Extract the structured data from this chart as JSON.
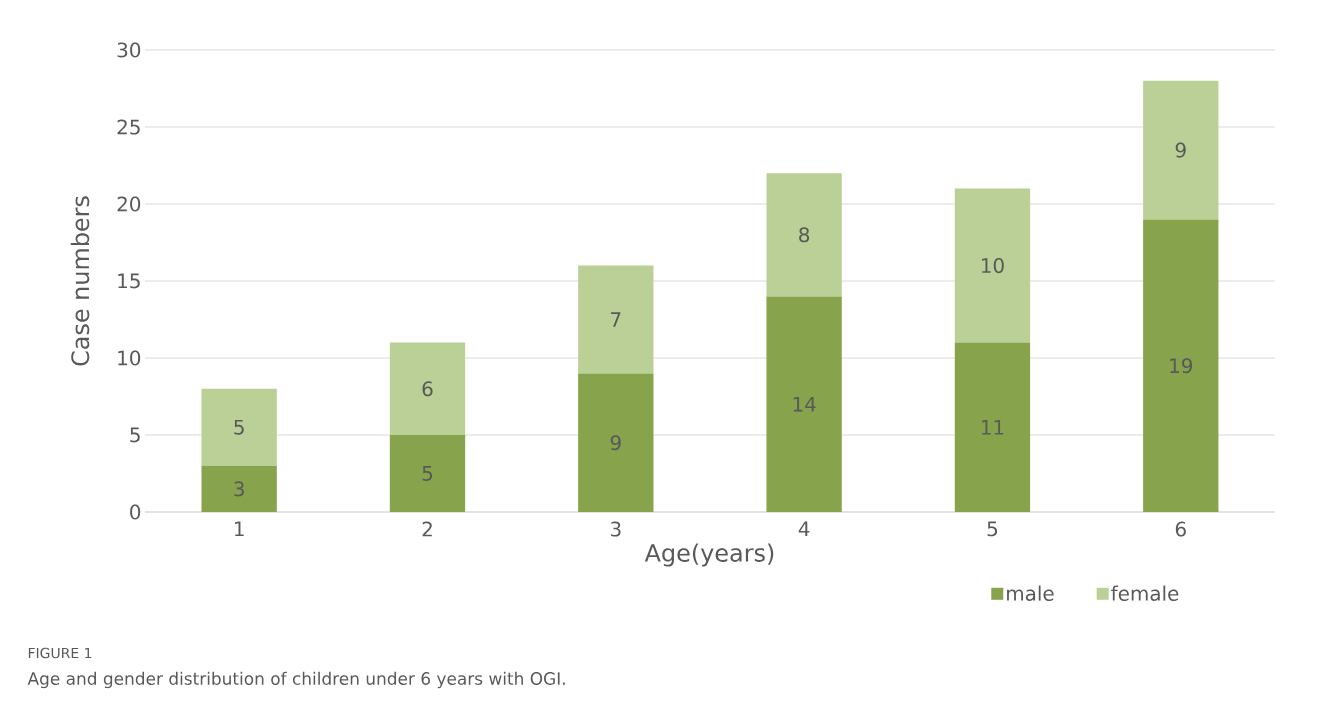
{
  "chart_data": {
    "type": "bar",
    "stacked": true,
    "xlabel": "Age(years)",
    "ylabel": "Case numbers",
    "categories": [
      "1",
      "2",
      "3",
      "4",
      "5",
      "6"
    ],
    "series": [
      {
        "name": "male",
        "color": "#87a44c",
        "values": [
          3,
          5,
          9,
          14,
          11,
          19
        ]
      },
      {
        "name": "female",
        "color": "#bad096",
        "values": [
          5,
          6,
          7,
          8,
          10,
          9
        ]
      }
    ],
    "ylim": [
      0,
      30
    ],
    "yticks": [
      0,
      5,
      10,
      15,
      20,
      25,
      30
    ],
    "grid": "y",
    "legend": "bottom right",
    "data_labels": true,
    "annotations": [
      "FIGURE 1",
      "Age and gender distribution of children under 6 years with OGI."
    ]
  }
}
